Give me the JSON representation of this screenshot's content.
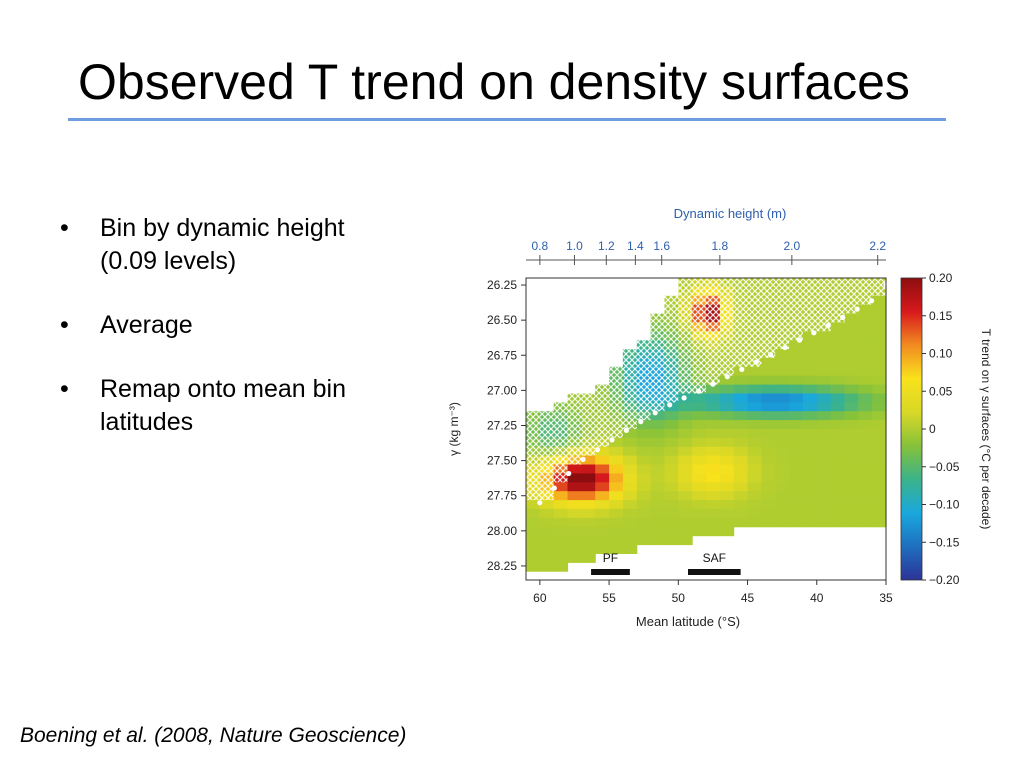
{
  "slide": {
    "title": "Observed T trend on density surfaces",
    "bullets": [
      {
        "marker": "•",
        "text": "Bin by dynamic height (0.09 levels)"
      },
      {
        "marker": "•",
        "text": "Average"
      },
      {
        "marker": "•",
        "text": "Remap onto mean bin latitudes"
      }
    ],
    "footer": "Boening et al. (2008, Nature Geoscience)"
  },
  "chart_data": {
    "type": "heatmap",
    "top_axis": {
      "label": "Dynamic height (m)",
      "ticks": [
        "0.8",
        "1.0",
        "1.2",
        "1.4",
        "1.6",
        "1.8",
        "2.0",
        "2.2"
      ],
      "tick_latitudes": [
        60,
        57.5,
        55.2,
        53.1,
        51.2,
        47,
        41.8,
        35.6
      ]
    },
    "x": {
      "label": "Mean latitude (°S)",
      "ticks": [
        "60",
        "55",
        "50",
        "45",
        "40",
        "35"
      ],
      "tick_values": [
        60,
        55,
        50,
        45,
        40,
        35
      ],
      "range": [
        61,
        35
      ]
    },
    "y": {
      "label": "γ (kg m⁻³)",
      "ticks": [
        "26.25",
        "26.50",
        "26.75",
        "27.00",
        "27.25",
        "27.50",
        "27.75",
        "28.00",
        "28.25"
      ],
      "tick_values": [
        26.25,
        26.5,
        26.75,
        27.0,
        27.25,
        27.5,
        27.75,
        28.0,
        28.25
      ],
      "range": [
        26.2,
        28.35
      ]
    },
    "colorbar": {
      "label": "T trend on γ surfaces (°C per decade)",
      "ticks": [
        "0.20",
        "0.15",
        "0.10",
        "0.05",
        "0",
        "−0.05",
        "−0.10",
        "−0.15",
        "−0.20"
      ],
      "tick_values": [
        0.2,
        0.15,
        0.1,
        0.05,
        0,
        -0.05,
        -0.1,
        -0.15,
        -0.2
      ],
      "range": [
        -0.2,
        0.2
      ]
    },
    "fronts": [
      {
        "name": "PF",
        "lat_range": [
          56.3,
          53.5
        ]
      },
      {
        "name": "SAF",
        "lat_range": [
          49.3,
          45.5
        ]
      }
    ],
    "mixed_layer_boundary": {
      "note": "dots mark the boundary of the cross-hatched winter mixed layer region",
      "points": [
        [
          60,
          27.8
        ],
        [
          57,
          27.5
        ],
        [
          54,
          27.3
        ],
        [
          51,
          27.12
        ],
        [
          48,
          26.98
        ],
        [
          45,
          26.83
        ],
        [
          42,
          26.68
        ],
        [
          39,
          26.53
        ],
        [
          36,
          26.36
        ],
        [
          35,
          26.25
        ]
      ]
    },
    "field_model": {
      "note": "approximate trend field (°C per decade) estimated from the plotted colors",
      "background": 0.0,
      "features": [
        {
          "kind": "warm_core",
          "lat": 57,
          "gamma": 27.63,
          "amp": 0.21,
          "lat_scale": 2.8,
          "gamma_scale": 0.16
        },
        {
          "kind": "warm_core",
          "lat": 47.5,
          "gamma": 27.58,
          "amp": 0.07,
          "lat_scale": 2.5,
          "gamma_scale": 0.16
        },
        {
          "kind": "warm_core",
          "lat": 47.8,
          "gamma": 26.45,
          "amp": 0.2,
          "lat_scale": 1.2,
          "gamma_scale": 0.15
        },
        {
          "kind": "cool_band",
          "lat": 43,
          "gamma": 27.08,
          "amp": -0.14,
          "lat_scale": 6.0,
          "gamma_scale": 0.1
        },
        {
          "kind": "cool_band",
          "lat": 52,
          "gamma": 26.9,
          "amp": -0.12,
          "lat_scale": 2.5,
          "gamma_scale": 0.3
        },
        {
          "kind": "cool_band",
          "lat": 59,
          "gamma": 27.3,
          "amp": -0.06,
          "lat_scale": 2.0,
          "gamma_scale": 0.2
        }
      ]
    },
    "data_bottom": [
      [
        61,
        28.3
      ],
      [
        59,
        28.3
      ],
      [
        58,
        28.25
      ],
      [
        55.5,
        28.18
      ],
      [
        53,
        28.12
      ],
      [
        50,
        28.08
      ],
      [
        47,
        28.02
      ],
      [
        45,
        27.98
      ],
      [
        40,
        27.98
      ],
      [
        35,
        27.98
      ]
    ],
    "colors": {
      "colormap": [
        "#2b3396",
        "#1f6fc0",
        "#1aa8dd",
        "#3bb38a",
        "#86c23a",
        "#d9d826",
        "#f9e21c",
        "#f28b21",
        "#d7191c",
        "#8c0d0f"
      ],
      "axis": "#333333",
      "top_axis": "#2e5fae",
      "fronts": "#111111",
      "title_rule": "#6f9de0"
    }
  }
}
